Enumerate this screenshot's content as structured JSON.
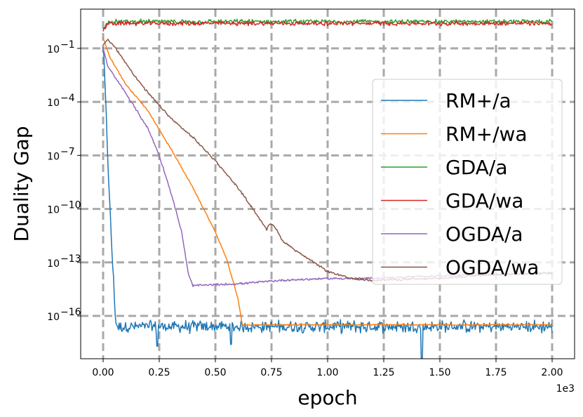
{
  "chart_data": {
    "type": "line",
    "title": "",
    "xlabel": "epoch",
    "ylabel": "Duality Gap",
    "x_scale_offset": "1e3",
    "x_unit_factor": 1000,
    "xlim": [
      -0.1,
      2.1
    ],
    "ylim_log10": [
      -18.4,
      1.2
    ],
    "yscale": "log",
    "grid": true,
    "legend_position": "center-right",
    "x_ticks": [
      0.0,
      0.25,
      0.5,
      0.75,
      1.0,
      1.25,
      1.5,
      1.75,
      2.0
    ],
    "x_tick_labels": [
      "0.00",
      "0.25",
      "0.50",
      "0.75",
      "1.00",
      "1.25",
      "1.50",
      "1.75",
      "2.00"
    ],
    "y_ticks_exp": [
      -1,
      -4,
      -7,
      -10,
      -13,
      -16
    ],
    "y_tick_labels": [
      "10",
      "10",
      "10",
      "10",
      "10",
      "10"
    ],
    "y_tick_superscripts": [
      "−1",
      "−4",
      "−7",
      "−10",
      "−13",
      "−16"
    ],
    "series": [
      {
        "name": "RM+/a",
        "color": "#1f77b4",
        "noise": 0.28,
        "downspikes": [
          [
            0.24,
            -17.7
          ],
          [
            0.57,
            -17.6
          ],
          [
            1.42,
            -19.5
          ]
        ],
        "points": [
          [
            0,
            -0.8
          ],
          [
            0.008,
            -3.0
          ],
          [
            0.03,
            -10.0
          ],
          [
            0.05,
            -15.0
          ],
          [
            0.058,
            -16.5
          ],
          [
            0.07,
            -16.6
          ],
          [
            2.0,
            -16.6
          ]
        ]
      },
      {
        "name": "RM+/wa",
        "color": "#ff7f0e",
        "noise": 0.03,
        "points": [
          [
            0,
            -0.4
          ],
          [
            0.03,
            -1.5
          ],
          [
            0.1,
            -3.0
          ],
          [
            0.2,
            -4.5
          ],
          [
            0.3,
            -6.6
          ],
          [
            0.4,
            -8.8
          ],
          [
            0.5,
            -11.3
          ],
          [
            0.55,
            -12.8
          ],
          [
            0.6,
            -15.0
          ],
          [
            0.62,
            -16.5
          ],
          [
            2.0,
            -16.5
          ]
        ]
      },
      {
        "name": "GDA/a",
        "color": "#2ca02c",
        "noise": 0.1,
        "points": [
          [
            0,
            0.0
          ],
          [
            0.01,
            0.2
          ],
          [
            0.02,
            0.5
          ],
          [
            2.0,
            0.5
          ]
        ]
      },
      {
        "name": "GDA/wa",
        "color": "#d62728",
        "noise": 0.1,
        "points": [
          [
            0,
            0.0
          ],
          [
            0.01,
            0.2
          ],
          [
            0.02,
            0.4
          ],
          [
            2.0,
            0.4
          ]
        ]
      },
      {
        "name": "OGDA/a",
        "color": "#9467bd",
        "noise": 0.05,
        "points": [
          [
            0,
            -1.0
          ],
          [
            0.02,
            -2.0
          ],
          [
            0.1,
            -3.5
          ],
          [
            0.2,
            -5.5
          ],
          [
            0.25,
            -7.0
          ],
          [
            0.3,
            -9.0
          ],
          [
            0.35,
            -11.3
          ],
          [
            0.38,
            -13.7
          ],
          [
            0.4,
            -14.3
          ],
          [
            0.6,
            -14.2
          ],
          [
            0.8,
            -14.0
          ],
          [
            1.0,
            -13.9
          ],
          [
            1.2,
            -13.9
          ],
          [
            1.6,
            -13.7
          ],
          [
            2.0,
            -13.6
          ]
        ]
      },
      {
        "name": "OGDA/wa",
        "color": "#8c564b",
        "noise": 0.05,
        "points": [
          [
            0,
            -0.8
          ],
          [
            0.02,
            -0.5
          ],
          [
            0.05,
            -0.9
          ],
          [
            0.1,
            -1.8
          ],
          [
            0.15,
            -2.7
          ],
          [
            0.2,
            -3.5
          ],
          [
            0.3,
            -4.9
          ],
          [
            0.4,
            -6.0
          ],
          [
            0.5,
            -7.3
          ],
          [
            0.6,
            -8.8
          ],
          [
            0.7,
            -10.6
          ],
          [
            0.73,
            -11.2
          ],
          [
            0.74,
            -10.8
          ],
          [
            0.76,
            -10.9
          ],
          [
            0.8,
            -11.8
          ],
          [
            0.9,
            -12.7
          ],
          [
            1.0,
            -13.5
          ],
          [
            1.1,
            -13.9
          ],
          [
            1.2,
            -14.0
          ],
          [
            1.5,
            -13.9
          ],
          [
            1.7,
            -13.7
          ],
          [
            2.0,
            -13.6
          ]
        ]
      }
    ]
  }
}
